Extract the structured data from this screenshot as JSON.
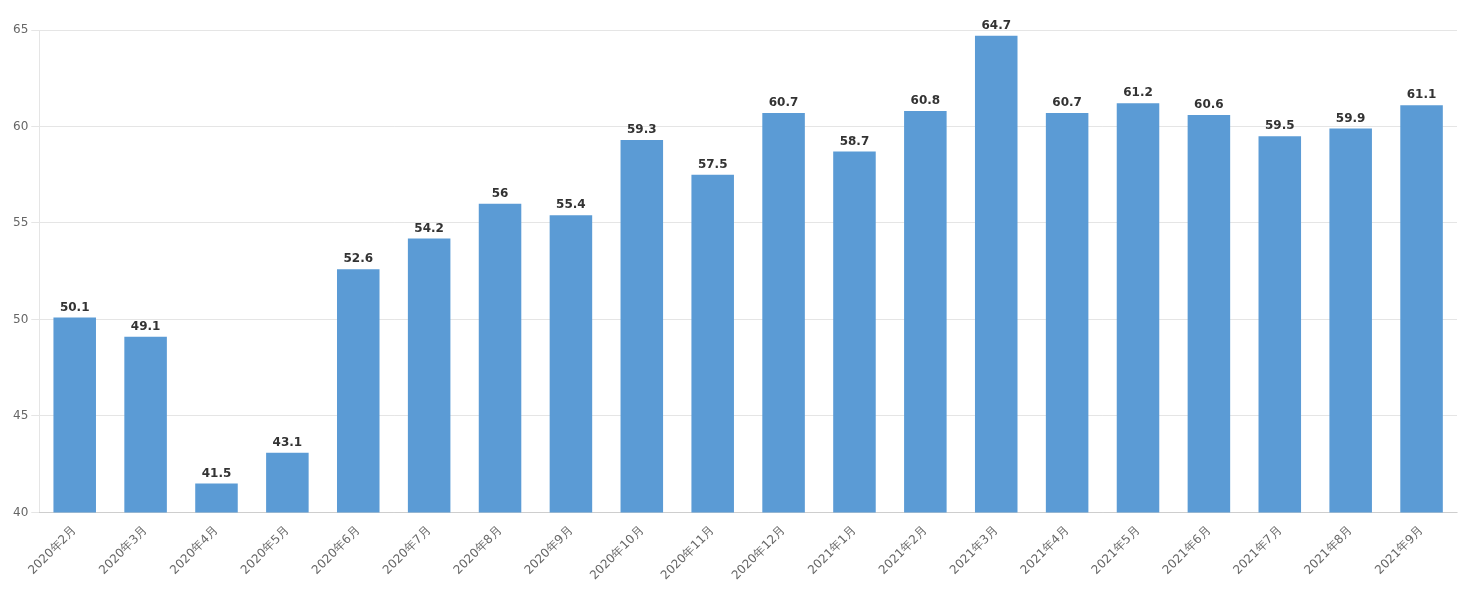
{
  "chart_data": {
    "type": "bar",
    "categories": [
      "2020年2月",
      "2020年3月",
      "2020年4月",
      "2020年5月",
      "2020年6月",
      "2020年7月",
      "2020年8月",
      "2020年9月",
      "2020年10月",
      "2020年11月",
      "2020年12月",
      "2021年1月",
      "2021年2月",
      "2021年3月",
      "2021年4月",
      "2021年5月",
      "2021年6月",
      "2021年7月",
      "2021年8月",
      "2021年9月"
    ],
    "values": [
      50.1,
      49.1,
      41.5,
      43.1,
      52.6,
      54.2,
      56,
      55.4,
      59.3,
      57.5,
      60.7,
      58.7,
      60.8,
      64.7,
      60.7,
      61.2,
      60.6,
      59.5,
      59.9,
      61.1
    ],
    "color": "#5b9bd5",
    "ylim": [
      40,
      65
    ],
    "yticks": [
      40,
      45,
      50,
      55,
      60,
      65
    ],
    "grid": true,
    "data_labels": true
  }
}
